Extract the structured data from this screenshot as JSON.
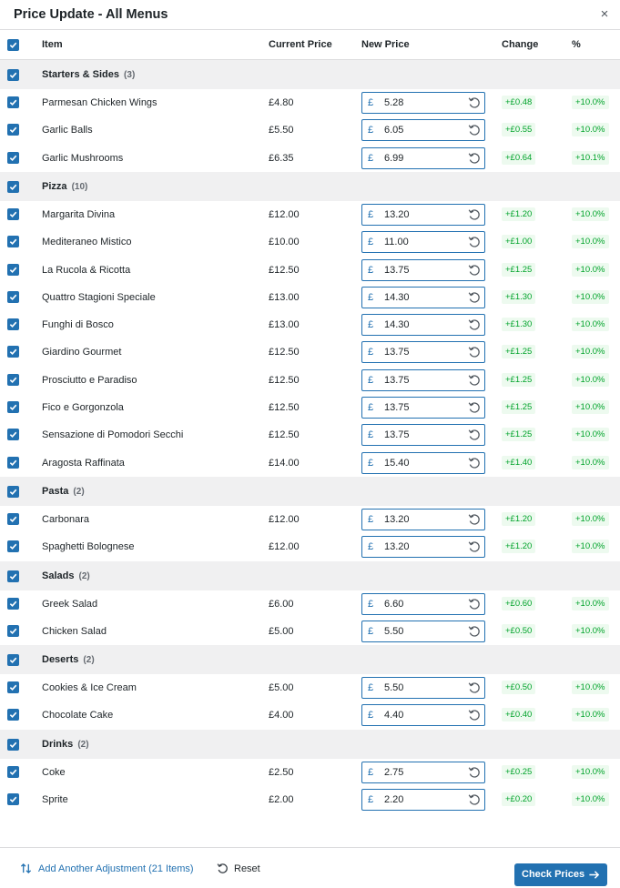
{
  "modal": {
    "title": "Price Update - All Menus",
    "close_label": "×"
  },
  "columns": {
    "item": "Item",
    "current_price": "Current Price",
    "new_price": "New Price",
    "change": "Change",
    "percent": "%"
  },
  "currency_symbol": "£",
  "categories": [
    {
      "name": "Starters & Sides",
      "count": "(3)",
      "items": [
        {
          "name": "Parmesan Chicken Wings",
          "current": "£4.80",
          "new": "5.28",
          "change": "+£0.48",
          "pct": "+10.0%"
        },
        {
          "name": "Garlic Balls",
          "current": "£5.50",
          "new": "6.05",
          "change": "+£0.55",
          "pct": "+10.0%"
        },
        {
          "name": "Garlic Mushrooms",
          "current": "£6.35",
          "new": "6.99",
          "change": "+£0.64",
          "pct": "+10.1%"
        }
      ]
    },
    {
      "name": "Pizza",
      "count": "(10)",
      "items": [
        {
          "name": "Margarita Divina",
          "current": "£12.00",
          "new": "13.20",
          "change": "+£1.20",
          "pct": "+10.0%"
        },
        {
          "name": "Mediteraneo Mistico",
          "current": "£10.00",
          "new": "11.00",
          "change": "+£1.00",
          "pct": "+10.0%"
        },
        {
          "name": "La Rucola & Ricotta",
          "current": "£12.50",
          "new": "13.75",
          "change": "+£1.25",
          "pct": "+10.0%"
        },
        {
          "name": "Quattro Stagioni Speciale",
          "current": "£13.00",
          "new": "14.30",
          "change": "+£1.30",
          "pct": "+10.0%"
        },
        {
          "name": "Funghi di Bosco",
          "current": "£13.00",
          "new": "14.30",
          "change": "+£1.30",
          "pct": "+10.0%"
        },
        {
          "name": "Giardino Gourmet",
          "current": "£12.50",
          "new": "13.75",
          "change": "+£1.25",
          "pct": "+10.0%"
        },
        {
          "name": "Prosciutto e Paradiso",
          "current": "£12.50",
          "new": "13.75",
          "change": "+£1.25",
          "pct": "+10.0%"
        },
        {
          "name": "Fico e Gorgonzola",
          "current": "£12.50",
          "new": "13.75",
          "change": "+£1.25",
          "pct": "+10.0%"
        },
        {
          "name": "Sensazione di Pomodori Secchi",
          "current": "£12.50",
          "new": "13.75",
          "change": "+£1.25",
          "pct": "+10.0%"
        },
        {
          "name": "Aragosta Raffinata",
          "current": "£14.00",
          "new": "15.40",
          "change": "+£1.40",
          "pct": "+10.0%"
        }
      ]
    },
    {
      "name": "Pasta",
      "count": "(2)",
      "items": [
        {
          "name": "Carbonara",
          "current": "£12.00",
          "new": "13.20",
          "change": "+£1.20",
          "pct": "+10.0%"
        },
        {
          "name": "Spaghetti Bolognese",
          "current": "£12.00",
          "new": "13.20",
          "change": "+£1.20",
          "pct": "+10.0%"
        }
      ]
    },
    {
      "name": "Salads",
      "count": "(2)",
      "items": [
        {
          "name": "Greek Salad",
          "current": "£6.00",
          "new": "6.60",
          "change": "+£0.60",
          "pct": "+10.0%"
        },
        {
          "name": "Chicken Salad",
          "current": "£5.00",
          "new": "5.50",
          "change": "+£0.50",
          "pct": "+10.0%"
        }
      ]
    },
    {
      "name": "Deserts",
      "count": "(2)",
      "items": [
        {
          "name": "Cookies & Ice Cream",
          "current": "£5.00",
          "new": "5.50",
          "change": "+£0.50",
          "pct": "+10.0%"
        },
        {
          "name": "Chocolate Cake",
          "current": "£4.00",
          "new": "4.40",
          "change": "+£0.40",
          "pct": "+10.0%"
        }
      ]
    },
    {
      "name": "Drinks",
      "count": "(2)",
      "items": [
        {
          "name": "Coke",
          "current": "£2.50",
          "new": "2.75",
          "change": "+£0.25",
          "pct": "+10.0%"
        },
        {
          "name": "Sprite",
          "current": "£2.00",
          "new": "2.20",
          "change": "+£0.20",
          "pct": "+10.0%"
        }
      ]
    }
  ],
  "footer": {
    "add_adjustment_label": "Add Another Adjustment (21 Items)",
    "reset_label": "Reset",
    "check_prices_label": "Check Prices"
  },
  "icons": {
    "checkbox": "checkbox-checked-icon",
    "reset_row": "undo-icon",
    "add_adjustment": "sort-arrows-icon",
    "reset_all": "undo-icon",
    "check_prices": "arrow-right-icon",
    "close": "close-icon"
  },
  "colors": {
    "accent": "#2271b1",
    "positive": "#00a32a",
    "positive_bg": "#edfaef",
    "category_bg": "#f0f0f1"
  }
}
